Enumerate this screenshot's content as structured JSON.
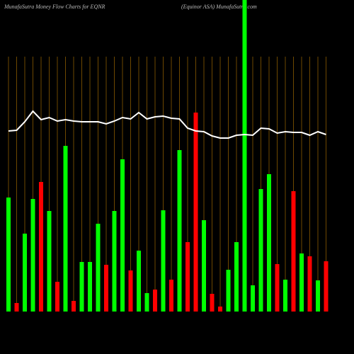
{
  "chart_data": {
    "type": "bar",
    "title": "MunafaSutra  Money Flow  Charts for EQNR",
    "subtitle": "(Equinor ASA) MunafaSutra.com",
    "categories": [
      null,
      null,
      null,
      null,
      null,
      null,
      null,
      null,
      null,
      null,
      null,
      null,
      null,
      null,
      null,
      null,
      null,
      null,
      null,
      null,
      null,
      null,
      null,
      null,
      null,
      null,
      null,
      null,
      null,
      null,
      null,
      null,
      null,
      null,
      null,
      null,
      null,
      null,
      null,
      null
    ],
    "series": [
      {
        "values": [
          161,
          12,
          110,
          159,
          183,
          142,
          42,
          234,
          15,
          70,
          70,
          124,
          66,
          142,
          215,
          58,
          86,
          26,
          31,
          143,
          45,
          228,
          98,
          281,
          129,
          25,
          7,
          59,
          98,
          440,
          37,
          173,
          194,
          67,
          45,
          170,
          82,
          78,
          44,
          71
        ],
        "colors": [
          "#00ff00",
          "#ff0000",
          "#00ff00",
          "#00ff00",
          "#ff0000",
          "#00ff00",
          "#ff0000",
          "#00ff00",
          "#ff0000",
          "#00ff00",
          "#00ff00",
          "#00ff00",
          "#ff0000",
          "#00ff00",
          "#00ff00",
          "#ff0000",
          "#00ff00",
          "#00ff00",
          "#ff0000",
          "#00ff00",
          "#ff0000",
          "#00ff00",
          "#ff0000",
          "#ff0000",
          "#00ff00",
          "#ff0000",
          "#ff0000",
          "#00ff00",
          "#00ff00",
          "#00ff00",
          "#00ff00",
          "#00ff00",
          "#00ff00",
          "#ff0000",
          "#00ff00",
          "#ff0000",
          "#00ff00",
          "#ff0000",
          "#00ff00",
          "#ff0000"
        ]
      },
      {
        "type": "line",
        "color": "#ffffff",
        "values": [
          255,
          256,
          268,
          283,
          271,
          274,
          269,
          271,
          269,
          268,
          268,
          268,
          265,
          269,
          274,
          272,
          281,
          272,
          275,
          276,
          273,
          272,
          259,
          255,
          254,
          248,
          245,
          245,
          249,
          250,
          249,
          259,
          258,
          252,
          254,
          253,
          253,
          249,
          254,
          250
        ]
      }
    ],
    "ylim": [
      0,
      440
    ]
  }
}
